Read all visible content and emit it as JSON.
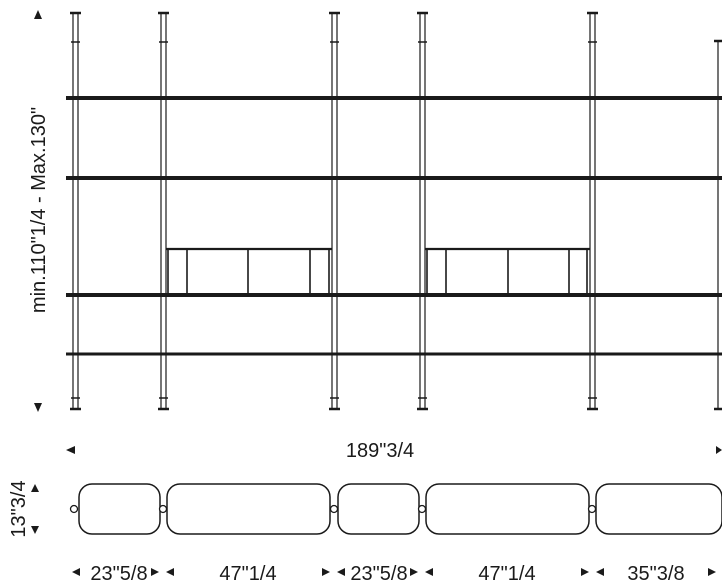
{
  "elevation": {
    "height_label": "min.110\"1/4 - Max.130\"",
    "total_width_label": "189\"3/4"
  },
  "plan": {
    "depth_label": "13\"3/4",
    "bay_labels": [
      "23\"5/8",
      "47\"1/4",
      "23\"5/8",
      "47\"1/4",
      "35\"3/8"
    ]
  },
  "colors": {
    "line": "#1a1a1a",
    "background": "#ffffff"
  }
}
